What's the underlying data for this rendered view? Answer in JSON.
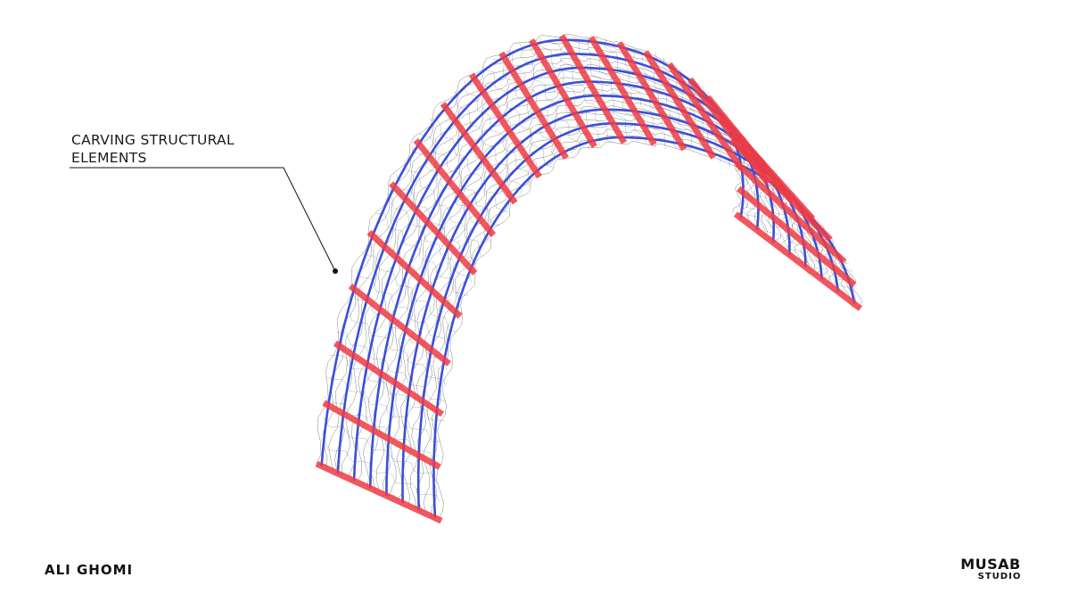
{
  "annotation": {
    "line1": "CARVING STRUCTURAL",
    "line2": "ELEMENTS"
  },
  "branding": {
    "author_logo": "ALI GHOMI",
    "studio_name": "MUSAB",
    "studio_sub": "STUDIO"
  },
  "colors": {
    "structural_rib": "#ef3b45",
    "longitudinal_line": "#3b4fd8",
    "mesh": "#222222",
    "background": "#ffffff"
  }
}
